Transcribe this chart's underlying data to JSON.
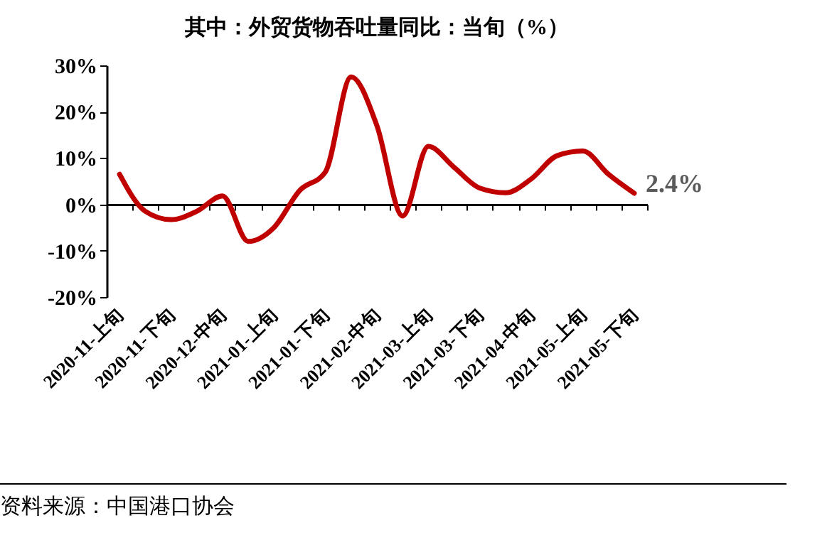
{
  "chart_data": {
    "type": "line",
    "title": "其中：外贸货物吞吐量同比：当旬（%）",
    "categories": [
      "2020-11-上旬",
      null,
      "2020-11-下旬",
      null,
      "2020-12-中旬",
      null,
      "2021-01-上旬",
      null,
      "2021-01-下旬",
      null,
      "2021-02-中旬",
      null,
      "2021-03-上旬",
      null,
      "2021-03-下旬",
      null,
      "2021-04-中旬",
      null,
      "2021-05-上旬",
      null,
      "2021-05-下旬"
    ],
    "series": [
      {
        "color": "#c00000",
        "values": [
          6.5,
          -1.5,
          -3.3,
          -1.5,
          1.8,
          -8,
          -5,
          3,
          7,
          27.5,
          17,
          -2.5,
          12.5,
          8,
          3.5,
          2.5,
          5.5,
          10.5,
          11.5,
          6.5,
          2.4
        ],
        "value_labels": [
          null,
          null,
          null,
          null,
          null,
          null,
          null,
          null,
          null,
          null,
          null,
          null,
          null,
          null,
          null,
          null,
          null,
          null,
          null,
          null,
          "2.4%"
        ]
      }
    ],
    "ylim": [
      -20,
      30
    ],
    "yticks": [
      {
        "value": -20,
        "label": "-20%"
      },
      {
        "value": -10,
        "label": "-10%"
      },
      {
        "value": 0,
        "label": "0%"
      },
      {
        "value": 10,
        "label": "10%"
      },
      {
        "value": 20,
        "label": "20%"
      },
      {
        "value": 30,
        "label": "30%"
      }
    ],
    "annotations": [
      "资料来源：中国港口协会"
    ]
  }
}
